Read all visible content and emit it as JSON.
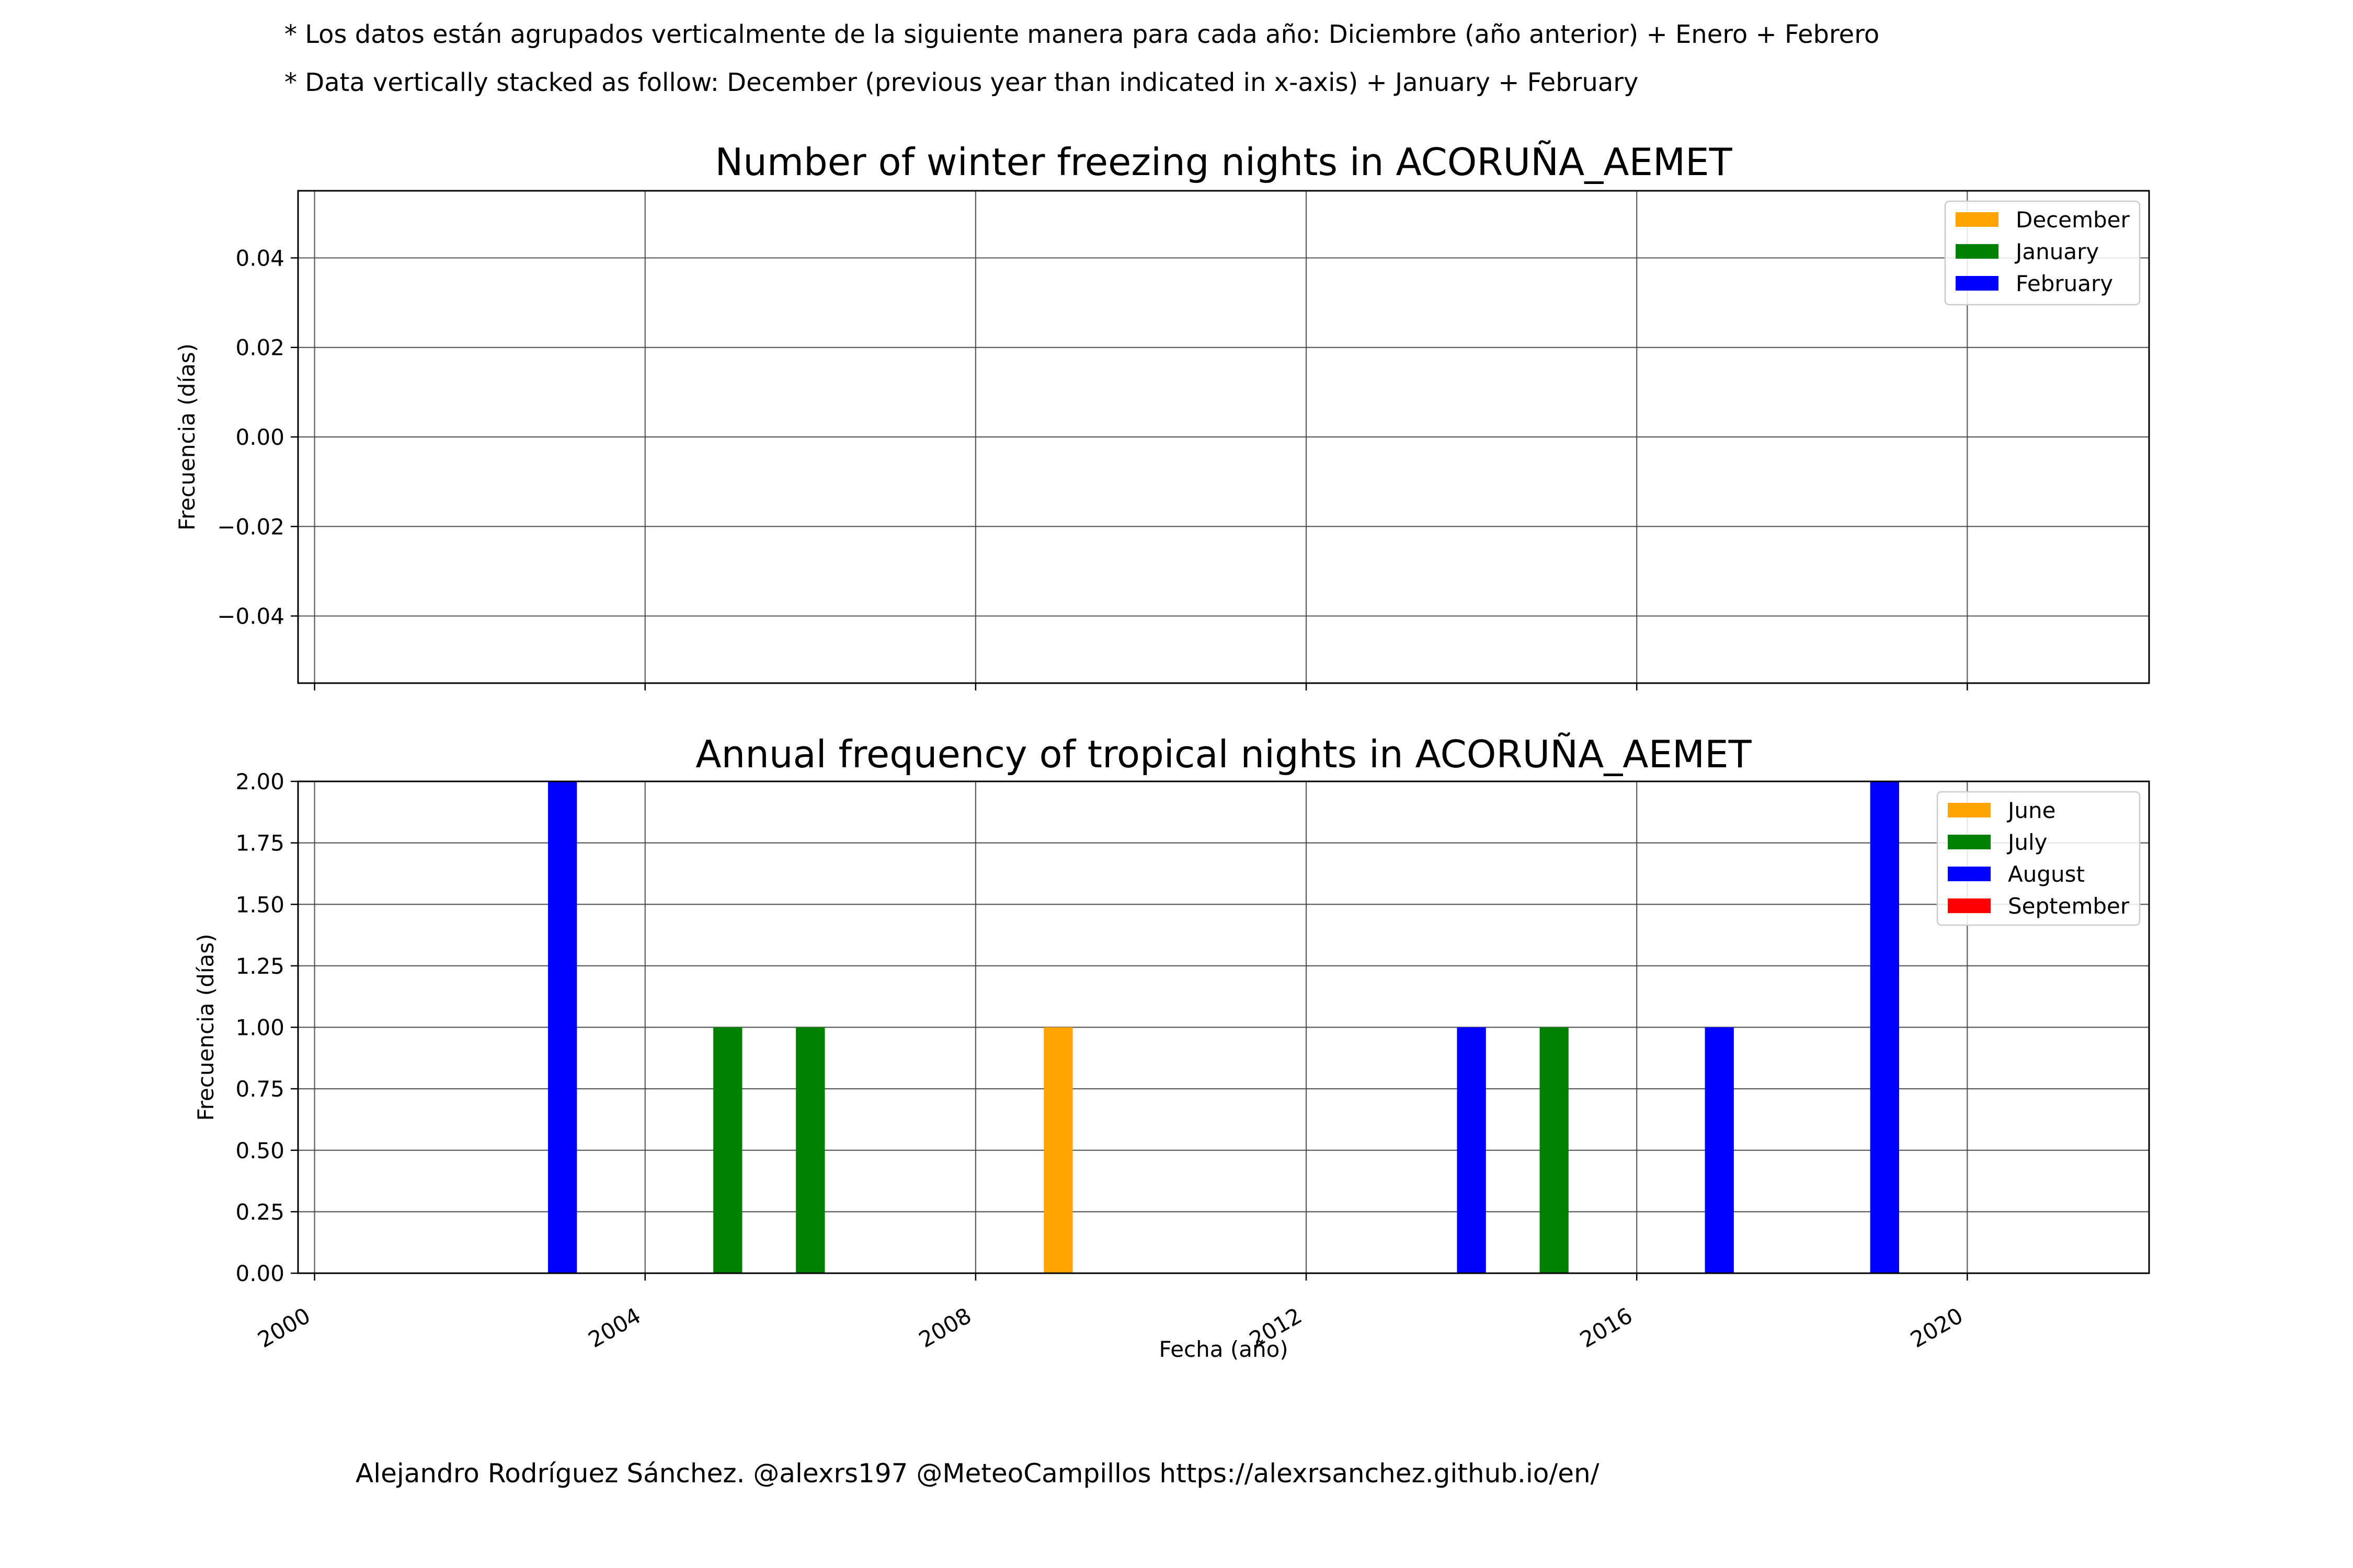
{
  "notes": [
    "* Los datos están agrupados verticalmente de la siguiente manera para cada año: Diciembre (año anterior) + Enero  + Febrero",
    "* Data vertically stacked as follow: December (previous year than indicated in x-axis) + January  + February"
  ],
  "footer": "Alejandro Rodríguez Sánchez. @alexrs197 @MeteoCampillos   https://alexrsanchez.github.io/en/",
  "chart_data": [
    {
      "type": "bar",
      "stacked": true,
      "title": "Number of winter freezing nights in ACORUÑA_AEMET",
      "ylabel": "Frecuencia (días)",
      "xlabel": "",
      "xlim": [
        1999.8,
        2022.2
      ],
      "ylim": [
        -0.055,
        0.055
      ],
      "yticks": [
        -0.04,
        -0.02,
        0.0,
        0.02,
        0.04
      ],
      "ytick_labels": [
        "−0.04",
        "−0.02",
        "0.00",
        "0.02",
        "0.04"
      ],
      "xticks": [
        2000,
        2004,
        2008,
        2012,
        2016,
        2020
      ],
      "show_xtick_labels": false,
      "grid": true,
      "legend_position": "top-right",
      "series": [
        {
          "name": "December",
          "color": "#ffa500",
          "points": []
        },
        {
          "name": "January",
          "color": "#008000",
          "points": []
        },
        {
          "name": "February",
          "color": "#0000ff",
          "points": []
        }
      ]
    },
    {
      "type": "bar",
      "stacked": true,
      "title": "Annual frequency of tropical nights in ACORUÑA_AEMET",
      "ylabel": "Frecuencia (días)",
      "xlabel": "Fecha (año)",
      "xlim": [
        1999.8,
        2022.2
      ],
      "ylim": [
        0,
        2.0
      ],
      "yticks": [
        0.0,
        0.25,
        0.5,
        0.75,
        1.0,
        1.25,
        1.5,
        1.75,
        2.0
      ],
      "ytick_labels": [
        "0.00",
        "0.25",
        "0.50",
        "0.75",
        "1.00",
        "1.25",
        "1.50",
        "1.75",
        "2.00"
      ],
      "xticks": [
        2000,
        2004,
        2008,
        2012,
        2016,
        2020
      ],
      "xtick_labels": [
        "2000",
        "2004",
        "2008",
        "2012",
        "2016",
        "2020"
      ],
      "show_xtick_labels": true,
      "grid": true,
      "legend_position": "top-right",
      "bar_width_years": 0.35,
      "series": [
        {
          "name": "June",
          "color": "#ffa500",
          "points": [
            [
              2009,
              1
            ]
          ]
        },
        {
          "name": "July",
          "color": "#008000",
          "points": [
            [
              2005,
              1
            ],
            [
              2006,
              1
            ],
            [
              2015,
              1
            ]
          ]
        },
        {
          "name": "August",
          "color": "#0000ff",
          "points": [
            [
              2003,
              2
            ],
            [
              2014,
              1
            ],
            [
              2017,
              1
            ],
            [
              2019,
              2
            ]
          ]
        },
        {
          "name": "September",
          "color": "#ff0000",
          "points": []
        }
      ]
    }
  ]
}
